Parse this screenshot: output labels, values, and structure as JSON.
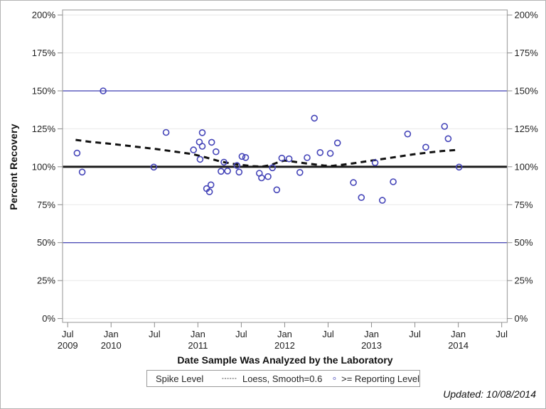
{
  "figure": {
    "y_axis_title": "Percent Recovery",
    "x_axis_title": "Date Sample Was Analyzed by the Laboratory",
    "updated_note": "Updated: 10/08/2014",
    "legend": {
      "title": "Spike Level",
      "loess_label": "Loess, Smooth=0.6",
      "marker_label": ">= Reporting Level"
    },
    "colors": {
      "reference_blue": "#3f3fb2",
      "reference_black": "#1a1a1a",
      "marker_blue": "#4444b8",
      "loess_black": "#111111",
      "grid_gray": "#e8e8e8",
      "wall_border_gray": "#a6a6a6",
      "tick_gray": "#8c8c8c",
      "text_dark": "#1f1f1f"
    }
  },
  "chart_data": {
    "type": "scatter",
    "title": "",
    "xlabel": "Date Sample Was Analyzed by the Laboratory",
    "ylabel": "Percent Recovery",
    "grid": true,
    "legend_position": "bottom",
    "x_unit": "months since 2009-07",
    "xlim_months": [
      0,
      60
    ],
    "ylim": [
      0,
      200
    ],
    "y_ticks": [
      {
        "value": 0,
        "label": "0%"
      },
      {
        "value": 25,
        "label": "25%"
      },
      {
        "value": 50,
        "label": "50%"
      },
      {
        "value": 75,
        "label": "75%"
      },
      {
        "value": 100,
        "label": "100%"
      },
      {
        "value": 125,
        "label": "125%"
      },
      {
        "value": 150,
        "label": "150%"
      },
      {
        "value": 175,
        "label": "175%"
      },
      {
        "value": 200,
        "label": "200%"
      }
    ],
    "x_ticks": [
      {
        "m": 0,
        "line1": "Jul",
        "line2": "2009"
      },
      {
        "m": 6,
        "line1": "Jan",
        "line2": "2010"
      },
      {
        "m": 12,
        "line1": "Jul",
        "line2": ""
      },
      {
        "m": 18,
        "line1": "Jan",
        "line2": "2011"
      },
      {
        "m": 24,
        "line1": "Jul",
        "line2": ""
      },
      {
        "m": 30,
        "line1": "Jan",
        "line2": "2012"
      },
      {
        "m": 36,
        "line1": "Jul",
        "line2": ""
      },
      {
        "m": 42,
        "line1": "Jan",
        "line2": "2013"
      },
      {
        "m": 48,
        "line1": "Jul",
        "line2": ""
      },
      {
        "m": 54,
        "line1": "Jan",
        "line2": "2014"
      },
      {
        "m": 60,
        "line1": "Jul",
        "line2": ""
      }
    ],
    "reference_lines": [
      {
        "name": "upper-spike-limit",
        "value": 150,
        "color": "#3f3fb2",
        "width": 1.2
      },
      {
        "name": "spike-level",
        "value": 100,
        "color": "#1a1a1a",
        "width": 3
      },
      {
        "name": "lower-spike-limit",
        "value": 50,
        "color": "#3f3fb2",
        "width": 1.2
      }
    ],
    "series": [
      {
        "name": ">= Reporting Level",
        "marker": "open-circle",
        "color": "#4444b8",
        "points": [
          {
            "date": "2009-08",
            "m": 1.3,
            "pct": 109.0
          },
          {
            "date": "2009-09",
            "m": 2.0,
            "pct": 96.5
          },
          {
            "date": "2009-12",
            "m": 4.9,
            "pct": 150.0
          },
          {
            "date": "2010-07",
            "m": 11.9,
            "pct": 99.8
          },
          {
            "date": "2010-09",
            "m": 13.6,
            "pct": 122.6
          },
          {
            "date": "2010-12",
            "m": 17.4,
            "pct": 111.1
          },
          {
            "date": "2011-01",
            "m": 18.2,
            "pct": 116.3
          },
          {
            "date": "2011-01",
            "m": 18.3,
            "pct": 104.9
          },
          {
            "date": "2011-01",
            "m": 18.6,
            "pct": 122.5
          },
          {
            "date": "2011-01",
            "m": 18.6,
            "pct": 113.5
          },
          {
            "date": "2011-02",
            "m": 19.2,
            "pct": 85.6
          },
          {
            "date": "2011-02",
            "m": 19.6,
            "pct": 83.5
          },
          {
            "date": "2011-03",
            "m": 19.8,
            "pct": 88.1
          },
          {
            "date": "2011-03",
            "m": 19.9,
            "pct": 116.1
          },
          {
            "date": "2011-03",
            "m": 20.5,
            "pct": 109.9
          },
          {
            "date": "2011-04",
            "m": 21.2,
            "pct": 97.0
          },
          {
            "date": "2011-04",
            "m": 21.6,
            "pct": 103.0
          },
          {
            "date": "2011-05",
            "m": 22.1,
            "pct": 97.2
          },
          {
            "date": "2011-06",
            "m": 23.4,
            "pct": 100.8
          },
          {
            "date": "2011-07",
            "m": 23.7,
            "pct": 96.5
          },
          {
            "date": "2011-07",
            "m": 24.1,
            "pct": 106.8
          },
          {
            "date": "2011-08",
            "m": 24.6,
            "pct": 106.1
          },
          {
            "date": "2011-09",
            "m": 26.5,
            "pct": 95.7
          },
          {
            "date": "2011-10",
            "m": 26.8,
            "pct": 92.7
          },
          {
            "date": "2011-10",
            "m": 27.7,
            "pct": 93.5
          },
          {
            "date": "2011-11",
            "m": 28.3,
            "pct": 99.3
          },
          {
            "date": "2011-12",
            "m": 28.9,
            "pct": 84.8
          },
          {
            "date": "2012-01",
            "m": 29.6,
            "pct": 105.7
          },
          {
            "date": "2012-02",
            "m": 30.6,
            "pct": 105.2
          },
          {
            "date": "2012-03",
            "m": 32.1,
            "pct": 96.3
          },
          {
            "date": "2012-04",
            "m": 33.1,
            "pct": 106.0
          },
          {
            "date": "2012-05",
            "m": 34.1,
            "pct": 132.0
          },
          {
            "date": "2012-06",
            "m": 34.9,
            "pct": 109.4
          },
          {
            "date": "2012-07",
            "m": 36.3,
            "pct": 108.8
          },
          {
            "date": "2012-08",
            "m": 37.3,
            "pct": 115.7
          },
          {
            "date": "2012-10",
            "m": 39.5,
            "pct": 89.6
          },
          {
            "date": "2012-11",
            "m": 40.6,
            "pct": 79.7
          },
          {
            "date": "2013-01",
            "m": 42.5,
            "pct": 102.7
          },
          {
            "date": "2013-02",
            "m": 43.5,
            "pct": 77.9
          },
          {
            "date": "2013-04",
            "m": 45.0,
            "pct": 90.1
          },
          {
            "date": "2013-06",
            "m": 47.0,
            "pct": 121.6
          },
          {
            "date": "2013-08",
            "m": 49.5,
            "pct": 112.9
          },
          {
            "date": "2013-11",
            "m": 52.1,
            "pct": 126.6
          },
          {
            "date": "2013-12",
            "m": 52.6,
            "pct": 118.5
          },
          {
            "date": "2014-01",
            "m": 54.1,
            "pct": 99.8
          }
        ]
      }
    ],
    "loess": {
      "label": "Loess, Smooth=0.6",
      "style": "dashed",
      "color": "#111111",
      "points": [
        {
          "m": 1.1,
          "pct": 117.7
        },
        {
          "m": 3.0,
          "pct": 116.5
        },
        {
          "m": 6.0,
          "pct": 115.1
        },
        {
          "m": 8.9,
          "pct": 113.5
        },
        {
          "m": 12.0,
          "pct": 111.8
        },
        {
          "m": 14.8,
          "pct": 110.0
        },
        {
          "m": 17.3,
          "pct": 108.3
        },
        {
          "m": 19.2,
          "pct": 106.0
        },
        {
          "m": 21.2,
          "pct": 103.4
        },
        {
          "m": 22.7,
          "pct": 102.0
        },
        {
          "m": 24.2,
          "pct": 101.1
        },
        {
          "m": 25.6,
          "pct": 100.4
        },
        {
          "m": 26.9,
          "pct": 100.1
        },
        {
          "m": 28.1,
          "pct": 101.2
        },
        {
          "m": 29.3,
          "pct": 103.3
        },
        {
          "m": 30.0,
          "pct": 104.1
        },
        {
          "m": 31.2,
          "pct": 103.4
        },
        {
          "m": 32.5,
          "pct": 102.5
        },
        {
          "m": 34.0,
          "pct": 101.6
        },
        {
          "m": 35.4,
          "pct": 100.8
        },
        {
          "m": 36.6,
          "pct": 100.6
        },
        {
          "m": 37.9,
          "pct": 101.3
        },
        {
          "m": 39.4,
          "pct": 102.2
        },
        {
          "m": 40.8,
          "pct": 103.2
        },
        {
          "m": 42.3,
          "pct": 104.3
        },
        {
          "m": 43.8,
          "pct": 105.3
        },
        {
          "m": 45.8,
          "pct": 106.7
        },
        {
          "m": 47.7,
          "pct": 108.1
        },
        {
          "m": 49.7,
          "pct": 109.3
        },
        {
          "m": 51.7,
          "pct": 110.3
        },
        {
          "m": 53.9,
          "pct": 111.1
        }
      ]
    }
  }
}
